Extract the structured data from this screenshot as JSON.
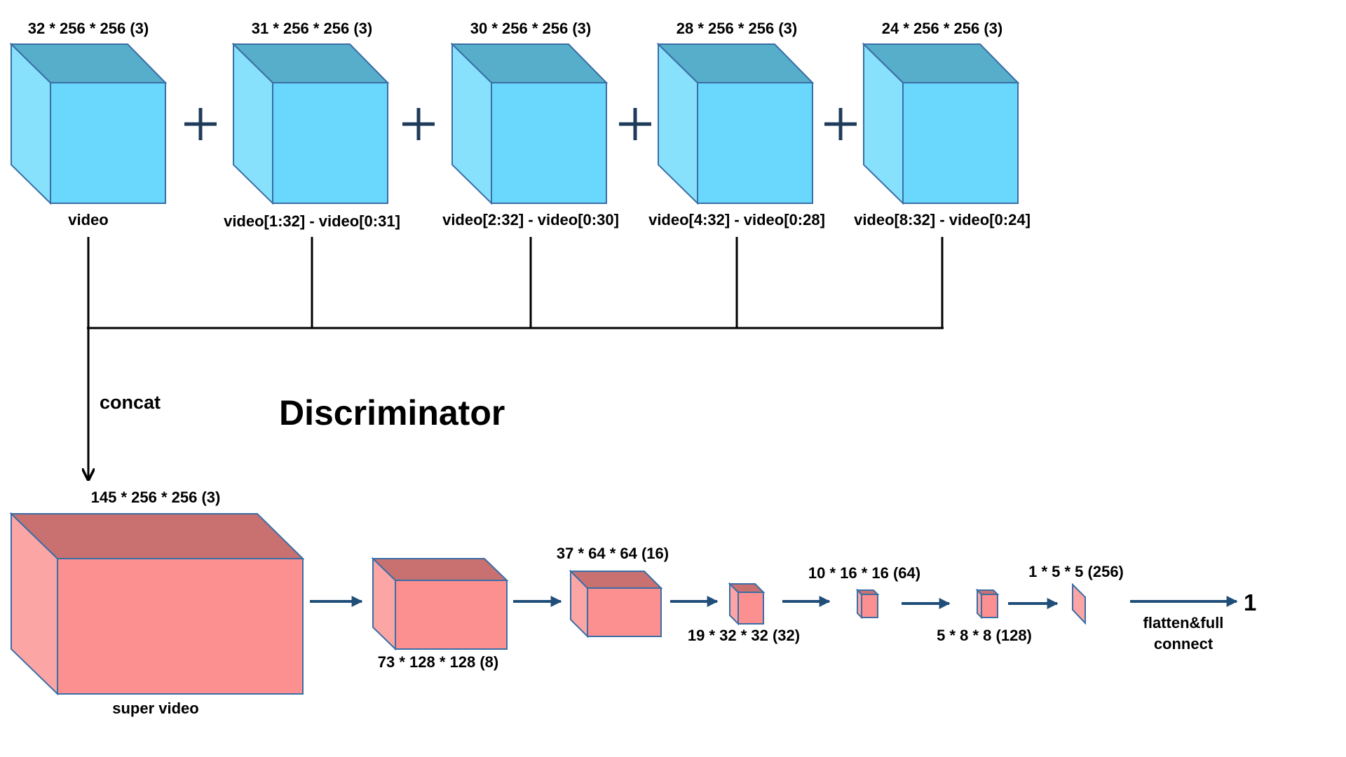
{
  "title": "Discriminator",
  "concat_label": "concat",
  "output_value": "1",
  "colors": {
    "blue_front": "#6ad8fc",
    "blue_side": "#88e1fc",
    "blue_top": "#56aecb",
    "red_front": "#fc8f8f",
    "red_side": "#fca5a5",
    "red_top": "#c97171",
    "edge": "#3a6ea5",
    "arrow": "#1f4e79"
  },
  "inputs": [
    {
      "size": "32 * 256 * 256 (3)",
      "name": "video"
    },
    {
      "size": "31 * 256 * 256 (3)",
      "name": "video[1:32] - video[0:31]"
    },
    {
      "size": "30 * 256 * 256 (3)",
      "name": "video[2:32] - video[0:30]"
    },
    {
      "size": "28 * 256 * 256 (3)",
      "name": "video[4:32] - video[0:28]"
    },
    {
      "size": "24 * 256 * 256 (3)",
      "name": "video[8:32] - video[0:24]"
    }
  ],
  "layers": [
    {
      "label": "145 * 256 * 256 (3)",
      "name": "super video"
    },
    {
      "label": "73 * 128 * 128 (8)"
    },
    {
      "label": "37 * 64 * 64 (16)"
    },
    {
      "label": "19 * 32 * 32 (32)"
    },
    {
      "label": "10 * 16 * 16 (64)"
    },
    {
      "label": "5 * 8 * 8 (128)"
    },
    {
      "label": "1 * 5 * 5 (256)"
    }
  ],
  "flatten_label": [
    "flatten&full",
    "connect"
  ]
}
